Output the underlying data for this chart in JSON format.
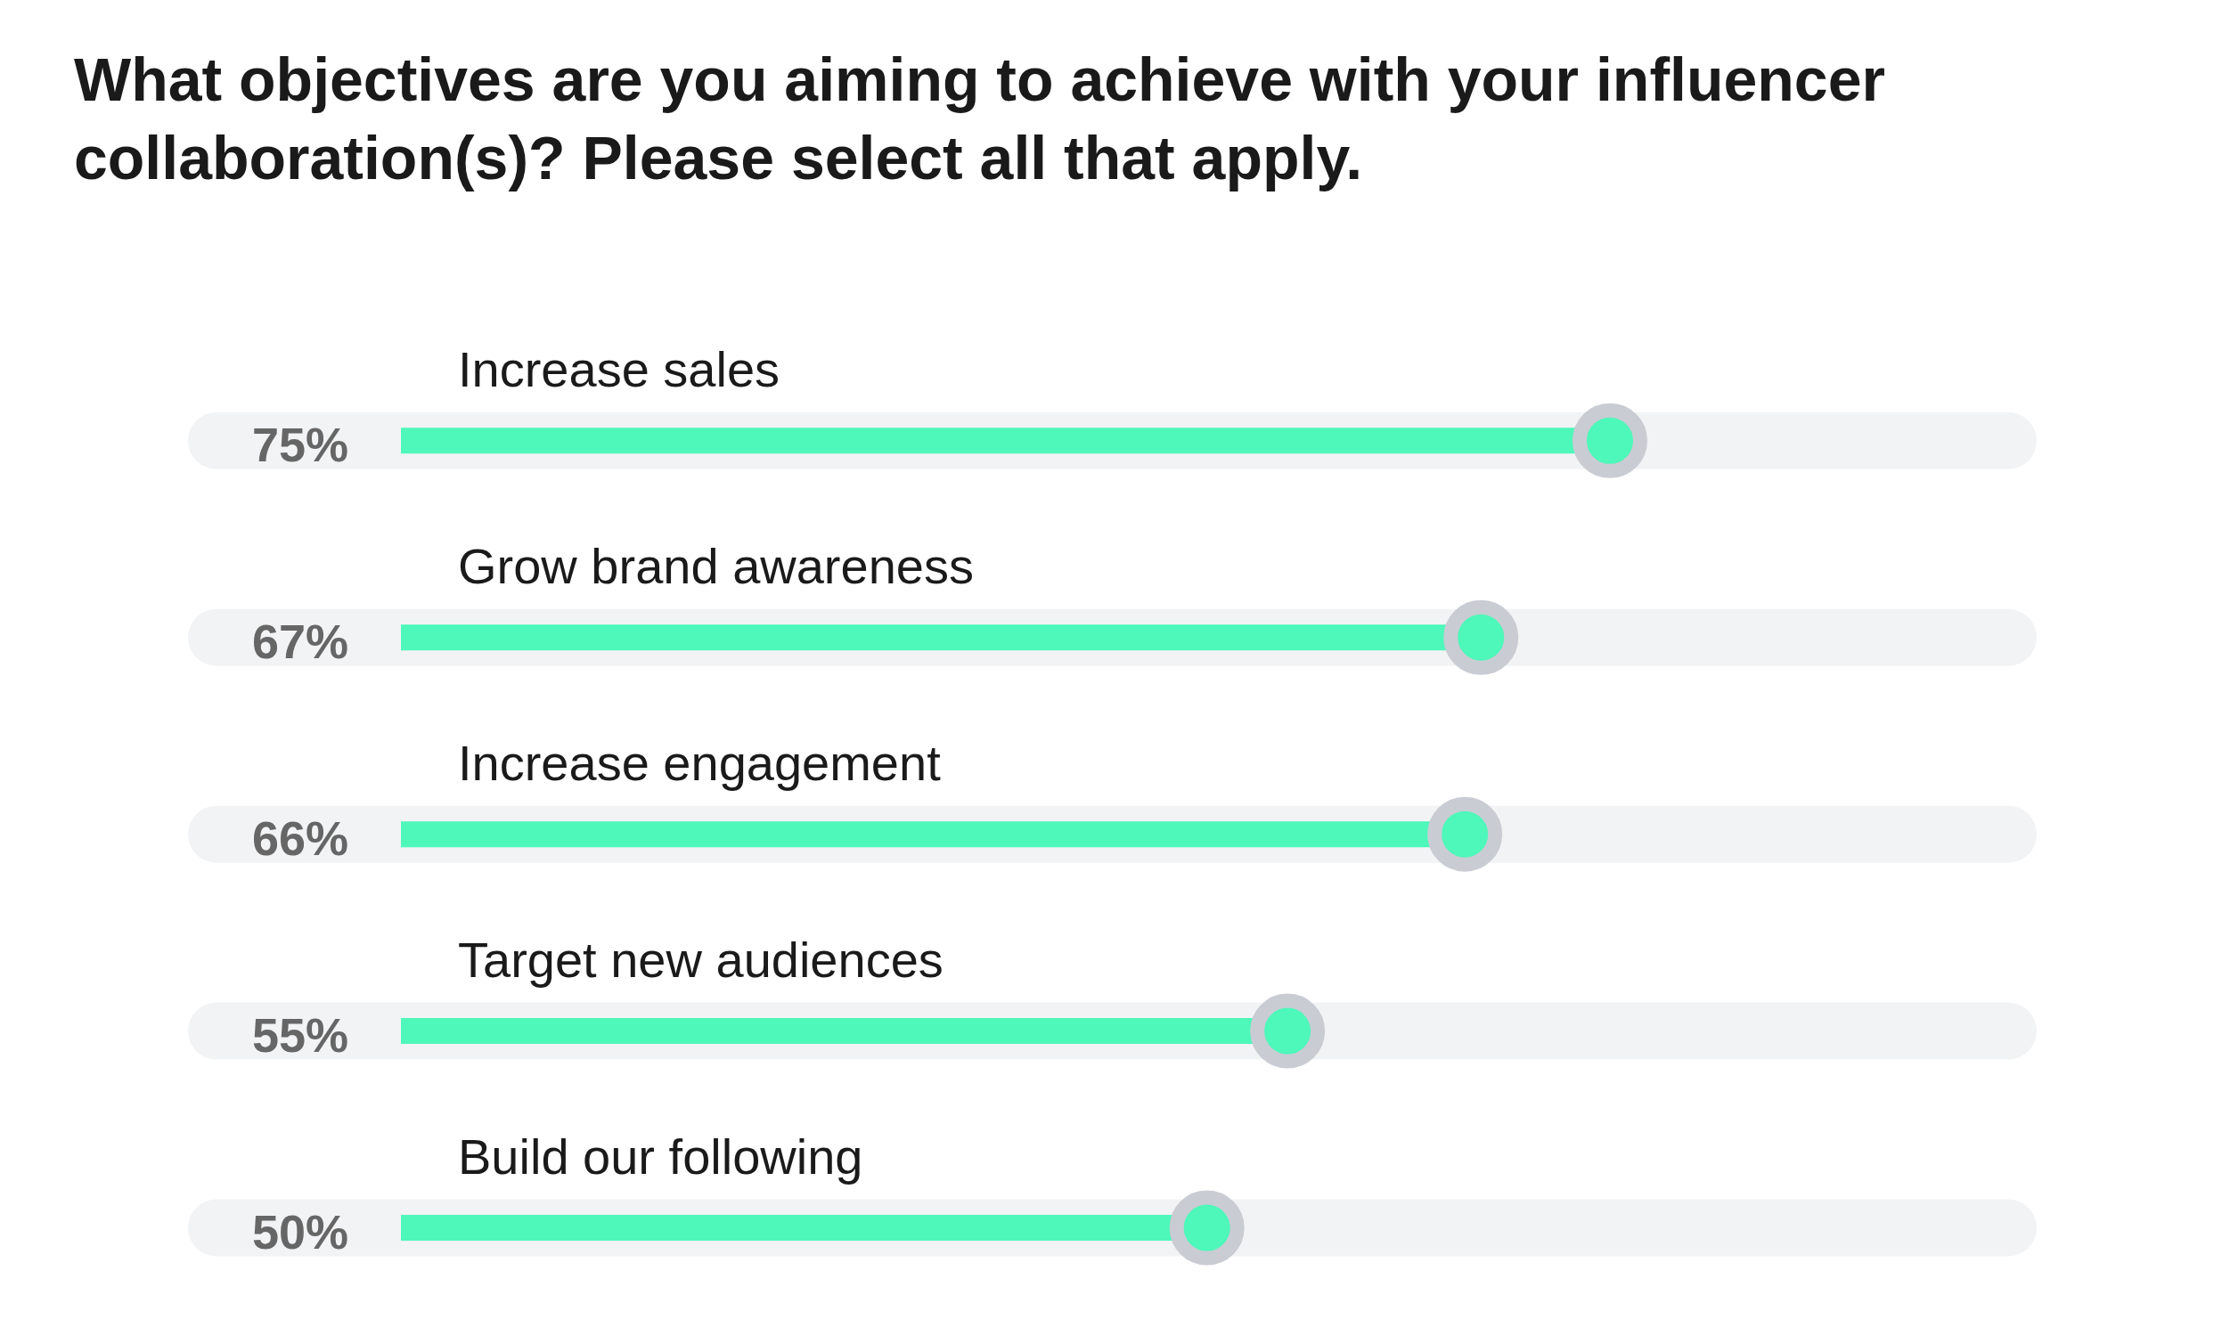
{
  "chart_data": {
    "type": "lollipop",
    "title": "What objectives are you aiming to achieve with your influencer collaboration(s)? Please select all that apply.",
    "categories": [
      "Increase sales",
      "Grow brand awareness",
      "Increase engagement",
      "Target new audiences",
      "Build our following"
    ],
    "values": [
      75,
      67,
      66,
      55,
      50
    ],
    "value_labels": [
      "75%",
      "67%",
      "66%",
      "55%",
      "50%"
    ],
    "color": "#4ef7ba",
    "orientation": "horizontal",
    "marker": "circle",
    "grid": "y",
    "tick_labels": "y"
  }
}
